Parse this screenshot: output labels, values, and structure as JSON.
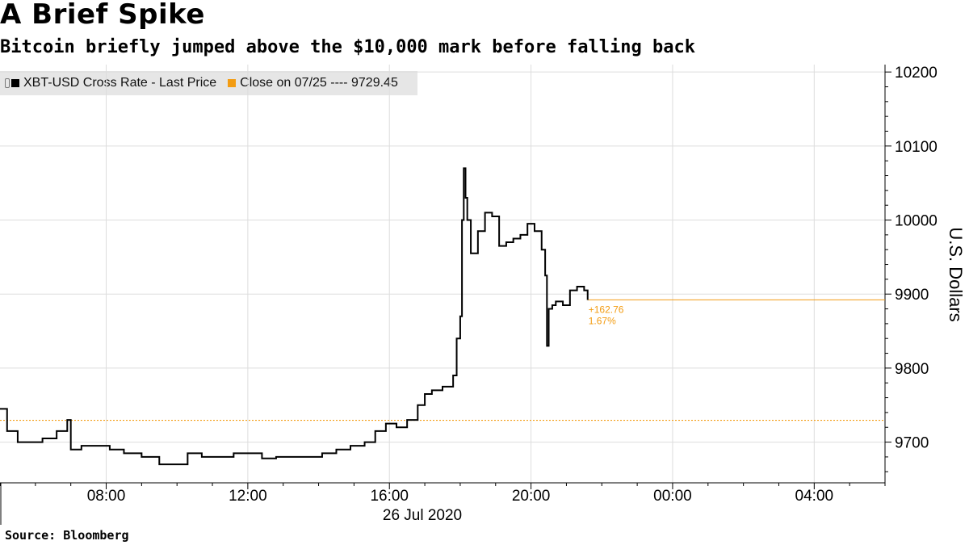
{
  "title": "A Brief Spike",
  "subtitle": "Bitcoin briefly jumped above the $10,000 mark before falling back",
  "source": "Source:  Bloomberg",
  "colors": {
    "price": "#000000",
    "close": "#f39c12",
    "legend_bg": "#e6e6e6",
    "grid": "#dddddd"
  },
  "legend": [
    {
      "label": "XBT-USD Cross Rate - Last Price",
      "color": "#000000"
    },
    {
      "label": "Close on 07/25 ---- 9729.45",
      "color": "#f39c12"
    }
  ],
  "chart_data": {
    "type": "line",
    "title": "A Brief Spike",
    "subtitle": "Bitcoin briefly jumped above the $10,000 mark before falling back",
    "ylabel": "U.S. Dollars",
    "xlabel": "26 Jul 2020",
    "ylim": [
      9645,
      10210
    ],
    "xlim": [
      5.0,
      30.0
    ],
    "x_unit": "hours since 00:00, 26 Jul 2020",
    "x_ticks": [
      {
        "x": 8,
        "label": "08:00"
      },
      {
        "x": 12,
        "label": "12:00"
      },
      {
        "x": 16,
        "label": "16:00"
      },
      {
        "x": 20,
        "label": "20:00"
      },
      {
        "x": 24,
        "label": "00:00"
      },
      {
        "x": 28,
        "label": "04:00"
      }
    ],
    "y_ticks": [
      9700,
      9800,
      9900,
      10000,
      10100,
      10200
    ],
    "y_tick_labels": [
      "9700",
      "9800",
      "9900",
      "10000",
      "10100",
      "10200"
    ],
    "grid": true,
    "legend_position": "top-left",
    "reference_line": {
      "name": "Close on 07/25",
      "value": 9729.45
    },
    "last_value": 9892.21,
    "annotation": {
      "change": "+162.76",
      "pct": "1.67%"
    },
    "series": [
      {
        "name": "XBT-USD Cross Rate - Last Price",
        "x": [
          5.0,
          5.2,
          5.5,
          5.8,
          6.2,
          6.6,
          6.9,
          7.0,
          7.3,
          7.7,
          8.1,
          8.5,
          9.0,
          9.5,
          9.9,
          10.3,
          10.7,
          11.1,
          11.6,
          12.0,
          12.4,
          12.8,
          13.2,
          13.7,
          14.1,
          14.5,
          14.9,
          15.3,
          15.6,
          15.9,
          16.2,
          16.5,
          16.8,
          17.0,
          17.2,
          17.5,
          17.8,
          17.9,
          18.0,
          18.05,
          18.1,
          18.15,
          18.2,
          18.3,
          18.5,
          18.7,
          18.9,
          19.1,
          19.3,
          19.5,
          19.7,
          19.9,
          20.1,
          20.3,
          20.4,
          20.45,
          20.5,
          20.6,
          20.7,
          20.9,
          21.1,
          21.3,
          21.5,
          21.6
        ],
        "y": [
          9745,
          9715,
          9700,
          9700,
          9705,
          9715,
          9730,
          9690,
          9695,
          9695,
          9690,
          9685,
          9680,
          9670,
          9670,
          9685,
          9680,
          9680,
          9685,
          9685,
          9678,
          9680,
          9680,
          9680,
          9685,
          9690,
          9695,
          9700,
          9715,
          9725,
          9720,
          9730,
          9750,
          9765,
          9770,
          9775,
          9790,
          9840,
          9870,
          10000,
          10070,
          10030,
          10000,
          9955,
          9985,
          10010,
          10005,
          9965,
          9970,
          9975,
          9980,
          9995,
          9985,
          9960,
          9925,
          9830,
          9880,
          9885,
          9890,
          9885,
          9905,
          9910,
          9905,
          9892
        ]
      }
    ]
  }
}
